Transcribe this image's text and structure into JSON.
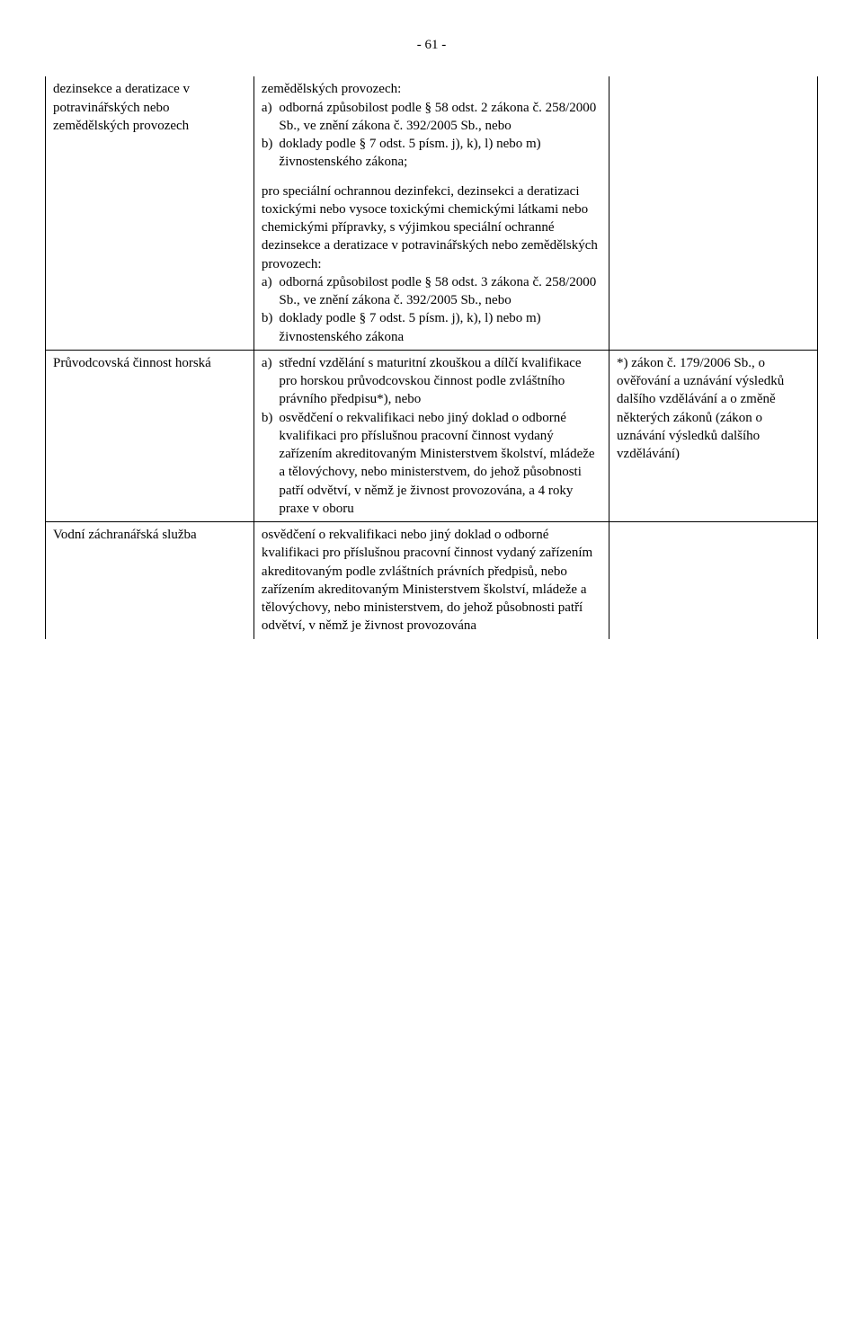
{
  "pageNumber": "- 61 -",
  "row1": {
    "col1": "dezinsekce a deratizace v potravinářských nebo zemědělských provozech",
    "col2_intro": "zemědělských provozech:",
    "col2_a1": "odborná způsobilost podle § 58 odst. 2 zákona č. 258/2000 Sb., ve znění zákona č. 392/2005 Sb., nebo",
    "col2_b1": "doklady podle § 7 odst. 5 písm. j), k), l) nebo m) živnostenského zákona;",
    "col2_mid": "pro speciální ochrannou dezinfekci, dezinsekci a deratizaci toxickými nebo vysoce toxickými chemickými látkami nebo chemickými přípravky, s výjimkou speciální ochranné dezinsekce a deratizace v potravinářských nebo zemědělských provozech:",
    "col2_a2": "odborná způsobilost podle § 58 odst. 3 zákona č. 258/2000 Sb., ve znění zákona č. 392/2005 Sb., nebo",
    "col2_b2": "doklady podle § 7 odst. 5 písm. j), k), l) nebo m) živnostenského zákona"
  },
  "row2": {
    "col1": "Průvodcovská činnost horská",
    "col2_a": "střední vzdělání s maturitní zkouškou a dílčí kvalifikace pro horskou průvodcovskou činnost podle zvláštního právního předpisu*), nebo",
    "col2_b": "osvědčení o rekvalifikaci nebo jiný doklad o odborné kvalifikaci pro příslušnou pracovní činnost vydaný zařízením akreditovaným Ministerstvem školství, mládeže a tělovýchovy, nebo ministerstvem, do jehož působnosti patří odvětví, v němž je živnost provozována, a 4 roky praxe v oboru",
    "col3": "*) zákon č. 179/2006 Sb., o ověřování a uznávání výsledků dalšího vzdělávání a o změně některých zákonů  (zákon o uznávání výsledků dalšího vzdělávání)"
  },
  "row3": {
    "col1": "Vodní záchranářská služba",
    "col2": "osvědčení o rekvalifikaci nebo jiný doklad o odborné kvalifikaci pro příslušnou pracovní činnost vydaný zařízením akreditovaným podle zvláštních právních předpisů, nebo zařízením akreditovaným Ministerstvem školství, mládeže a tělovýchovy, nebo ministerstvem, do jehož působnosti patří odvětví, v němž je živnost provozována"
  }
}
